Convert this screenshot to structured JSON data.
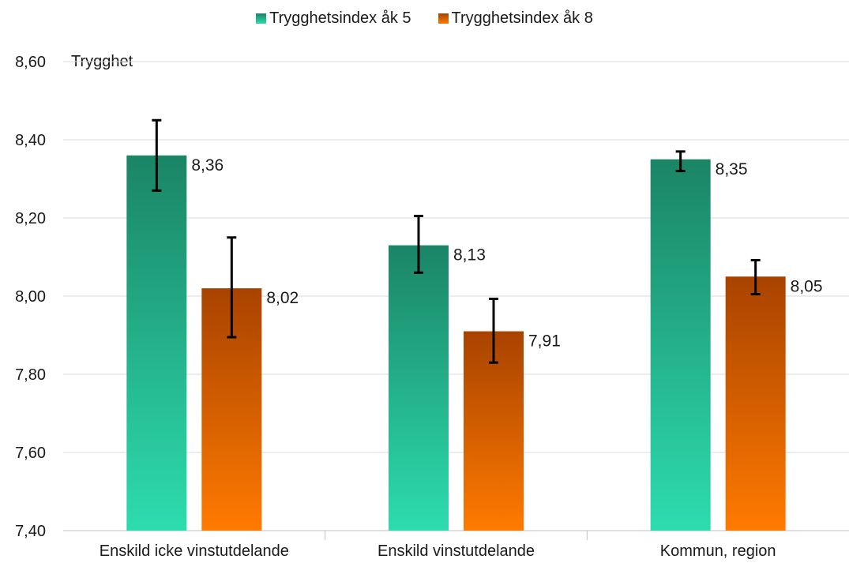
{
  "chart_data": {
    "type": "bar",
    "ylabel": "Trygghet",
    "categories": [
      "Enskild icke vinstutdelande",
      "Enskild vinstutdelande",
      "Kommun, region"
    ],
    "ylim": [
      7.4,
      8.6
    ],
    "yticks": [
      "7,40",
      "7,60",
      "7,80",
      "8,00",
      "8,20",
      "8,40",
      "8,60"
    ],
    "grid": true,
    "legend": "top-center",
    "series": [
      {
        "name": "Trygghetsindex åk 5",
        "values": [
          8.36,
          8.13,
          8.35
        ],
        "labels": [
          "8,36",
          "8,13",
          "8,35"
        ],
        "error_low": [
          8.27,
          8.06,
          8.32
        ],
        "error_high": [
          8.45,
          8.205,
          8.37
        ],
        "color_top": "#1b8566",
        "color_bottom": "#2ddcae"
      },
      {
        "name": "Trygghetsindex åk 8",
        "values": [
          8.02,
          7.91,
          8.05
        ],
        "labels": [
          "8,02",
          "7,91",
          "8,05"
        ],
        "error_low": [
          7.895,
          7.83,
          8.005
        ],
        "error_high": [
          8.15,
          7.993,
          8.092
        ],
        "color_top": "#a84300",
        "color_bottom": "#ff7a00"
      }
    ]
  }
}
